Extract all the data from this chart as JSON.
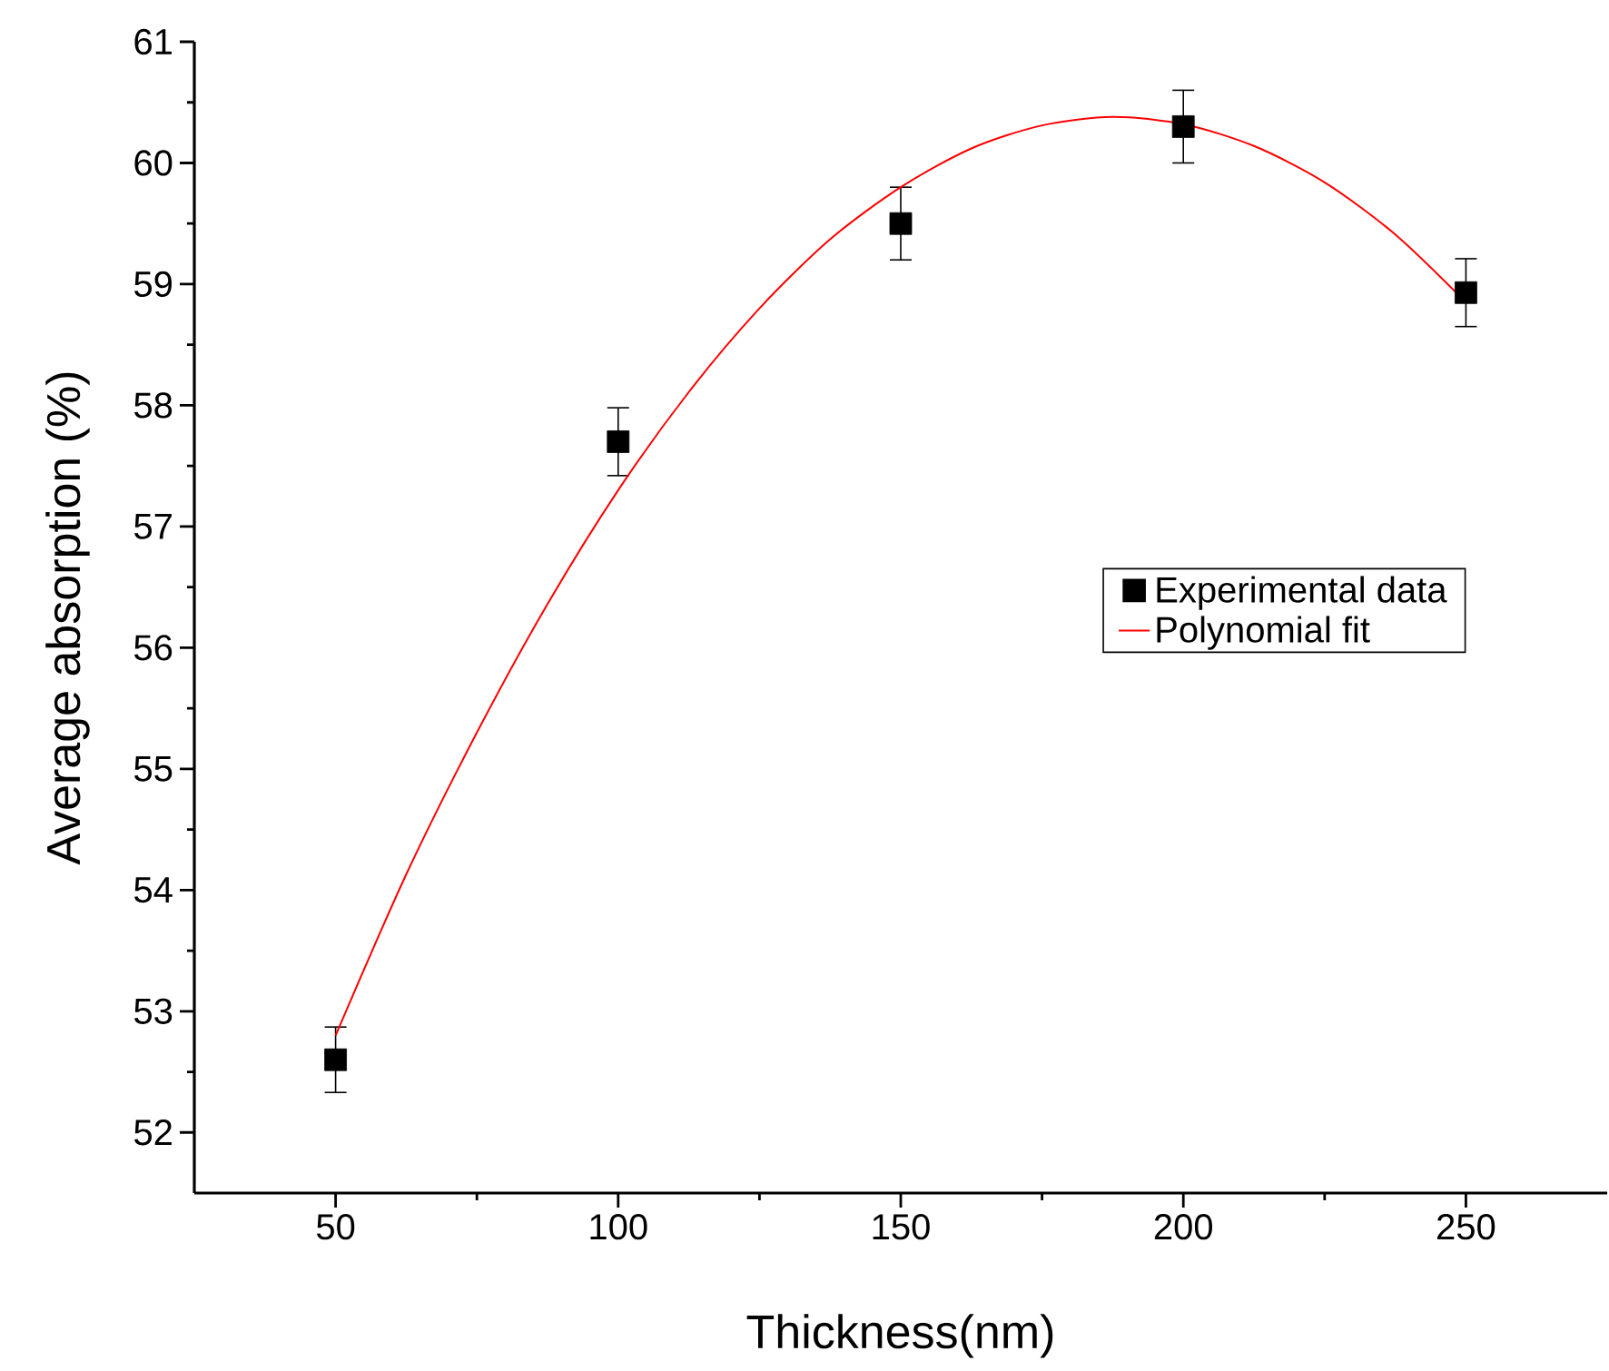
{
  "chart_data": {
    "type": "scatter",
    "xlabel": "Thickness(nm)",
    "ylabel": "Average absorption (%)",
    "xlim": [
      25,
      275
    ],
    "ylim": [
      51.5,
      61
    ],
    "xticks": [
      50,
      100,
      150,
      200,
      250
    ],
    "yticks": [
      52,
      53,
      54,
      55,
      56,
      57,
      58,
      59,
      60,
      61
    ],
    "legend": "right",
    "series": [
      {
        "name": "Experimental data",
        "marker": "square",
        "color": "#000000",
        "x": [
          50,
          100,
          150,
          200,
          250
        ],
        "values": [
          52.6,
          57.7,
          59.5,
          60.3,
          58.93
        ],
        "errors": [
          0.27,
          0.28,
          0.3,
          0.3,
          0.28
        ]
      },
      {
        "name": "Polynomial fit",
        "type": "line",
        "color": "#ff0000",
        "x": [
          50,
          62.5,
          75,
          87.5,
          100,
          112.5,
          125,
          137.5,
          150,
          162.5,
          175,
          187.5,
          200,
          212.5,
          225,
          237.5,
          250
        ],
        "values": [
          52.8,
          54.13,
          55.3,
          56.36,
          57.3,
          58.11,
          58.8,
          59.37,
          59.8,
          60.12,
          60.31,
          60.38,
          60.32,
          60.14,
          59.84,
          59.41,
          58.85
        ]
      }
    ]
  }
}
